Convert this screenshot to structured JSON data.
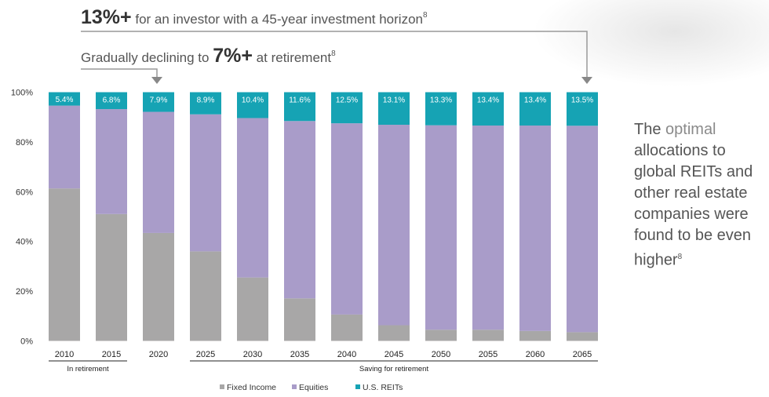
{
  "header": {
    "line1_bold": "13%+",
    "line1_text": " for an investor with a 45-year investment horizon",
    "line1_sup": "8",
    "line2_text": "Gradually declining to ",
    "line2_bold": "7%+",
    "line2_text2": " at retirement",
    "line2_sup": "8"
  },
  "side_note": {
    "pre": "The ",
    "light": "optimal",
    "rest": " allocations to global REITs and other real estate companies were found to be even higher",
    "sup": "8"
  },
  "chart_data": {
    "type": "bar",
    "stacked": true,
    "categories": [
      "2010",
      "2015",
      "2020",
      "2025",
      "2030",
      "2035",
      "2040",
      "2045",
      "2050",
      "2055",
      "2060",
      "2065"
    ],
    "series": [
      {
        "name": "Fixed Income",
        "color": "#a8a7a7",
        "values": [
          61.3,
          51.0,
          43.4,
          36.0,
          25.5,
          17.1,
          10.6,
          6.3,
          4.5,
          4.5,
          4.0,
          3.5
        ]
      },
      {
        "name": "Equities",
        "color": "#a99cc9",
        "values": [
          33.3,
          42.2,
          48.7,
          55.1,
          64.1,
          71.3,
          76.9,
          80.6,
          82.2,
          82.1,
          82.6,
          83.0
        ]
      },
      {
        "name": "U.S. REITs",
        "color": "#16a3b4",
        "values": [
          5.4,
          6.8,
          7.9,
          8.9,
          10.4,
          11.6,
          12.5,
          13.1,
          13.3,
          13.4,
          13.4,
          13.5
        ]
      }
    ],
    "data_labels": [
      "5.4%",
      "6.8%",
      "7.9%",
      "8.9%",
      "10.4%",
      "11.6%",
      "12.5%",
      "13.1%",
      "13.3%",
      "13.4%",
      "13.4%",
      "13.5%"
    ],
    "ylim": [
      0,
      100
    ],
    "yticks": [
      "0%",
      "20%",
      "40%",
      "60%",
      "80%",
      "100%"
    ],
    "groups": [
      {
        "label": "In retirement",
        "from": "2010",
        "to": "2015"
      },
      {
        "label": "Saving for retirement",
        "from": "2025",
        "to": "2065"
      }
    ],
    "legend_position": "bottom",
    "grid": false
  }
}
